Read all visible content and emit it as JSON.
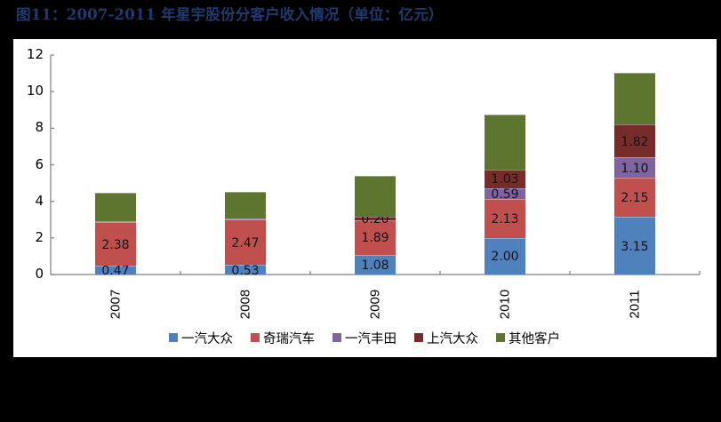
{
  "title": "图11：2007-2011 年星宇股份分客户收入情况（单位：亿元）",
  "chart_data": {
    "type": "bar",
    "stacked": true,
    "title": "图11：2007-2011 年星宇股份分客户收入情况（单位：亿元）",
    "xlabel": "",
    "ylabel": "",
    "ylim": [
      0,
      12
    ],
    "yticks": [
      0,
      2,
      4,
      6,
      8,
      10,
      12
    ],
    "ytick_labels": [
      "0",
      "2",
      "4",
      "6",
      "8",
      "10",
      "12"
    ],
    "grid": false,
    "legend_position": "bottom",
    "categories": [
      "2007",
      "2008",
      "2009",
      "2010",
      "2011"
    ],
    "series": [
      {
        "name": "一汽大众",
        "color": "#4F81BD",
        "values": [
          0.47,
          0.53,
          1.08,
          2.0,
          3.15
        ],
        "labels": [
          "0.47",
          "0.53",
          "1.08",
          "2.00",
          "3.15"
        ]
      },
      {
        "name": "奇瑞汽车",
        "color": "#C0504D",
        "values": [
          2.38,
          2.47,
          1.89,
          2.13,
          2.15
        ],
        "labels": [
          "2.38",
          "2.47",
          "1.89",
          "2.13",
          "2.15"
        ]
      },
      {
        "name": "一汽丰田",
        "color": "#8064A2",
        "values": [
          0.05,
          0.05,
          0.0,
          0.59,
          1.1
        ],
        "labels": [
          "",
          "",
          "",
          "0.59",
          "1.10"
        ]
      },
      {
        "name": "上汽大众",
        "color": "#772C2A",
        "values": [
          0.0,
          0.0,
          0.2,
          1.03,
          1.82
        ],
        "labels": [
          "",
          "",
          "0.20",
          "1.03",
          "1.82"
        ]
      },
      {
        "name": "其他客户",
        "color": "#5E7530",
        "values": [
          1.57,
          1.46,
          2.22,
          2.99,
          2.8
        ],
        "labels": [
          "",
          "",
          "",
          "",
          ""
        ]
      }
    ]
  },
  "legend": [
    {
      "label": "一汽大众",
      "color": "#4F81BD"
    },
    {
      "label": "奇瑞汽车",
      "color": "#C0504D"
    },
    {
      "label": "一汽丰田",
      "color": "#8064A2"
    },
    {
      "label": "上汽大众",
      "color": "#772C2A"
    },
    {
      "label": "其他客户",
      "color": "#5E7530"
    }
  ]
}
